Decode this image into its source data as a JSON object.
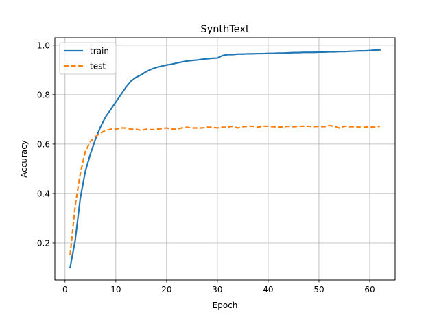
{
  "chart_data": {
    "type": "line",
    "title": "SynthText",
    "xlabel": "Epoch",
    "ylabel": "Accuracy",
    "xlim": [
      -2,
      65
    ],
    "ylim": [
      0.05,
      1.03
    ],
    "grid": true,
    "legend_position": "top-left",
    "x_ticks": [
      0,
      10,
      20,
      30,
      40,
      50,
      60
    ],
    "y_ticks": [
      0.2,
      0.4,
      0.6,
      0.8,
      1.0
    ],
    "x_tick_labels": [
      "0",
      "10",
      "20",
      "30",
      "40",
      "50",
      "60"
    ],
    "y_tick_labels": [
      "0.2",
      "0.4",
      "0.6",
      "0.8",
      "1.0"
    ],
    "x": [
      1,
      2,
      3,
      4,
      5,
      6,
      7,
      8,
      9,
      10,
      11,
      12,
      13,
      14,
      15,
      16,
      17,
      18,
      19,
      20,
      21,
      22,
      23,
      24,
      25,
      26,
      27,
      28,
      29,
      30,
      31,
      32,
      33,
      34,
      35,
      36,
      37,
      38,
      39,
      40,
      41,
      42,
      43,
      44,
      45,
      46,
      47,
      48,
      49,
      50,
      51,
      52,
      53,
      54,
      55,
      56,
      57,
      58,
      59,
      60,
      61,
      62
    ],
    "series": [
      {
        "name": "train",
        "color": "#1f77b4",
        "style": "solid",
        "values": [
          0.1,
          0.21,
          0.38,
          0.49,
          0.56,
          0.62,
          0.67,
          0.71,
          0.74,
          0.77,
          0.8,
          0.83,
          0.855,
          0.87,
          0.88,
          0.893,
          0.903,
          0.91,
          0.915,
          0.92,
          0.923,
          0.928,
          0.932,
          0.936,
          0.938,
          0.94,
          0.943,
          0.945,
          0.947,
          0.948,
          0.958,
          0.962,
          0.962,
          0.964,
          0.964,
          0.965,
          0.965,
          0.966,
          0.966,
          0.967,
          0.967,
          0.968,
          0.968,
          0.969,
          0.97,
          0.97,
          0.971,
          0.971,
          0.971,
          0.972,
          0.972,
          0.973,
          0.973,
          0.974,
          0.974,
          0.975,
          0.976,
          0.977,
          0.977,
          0.978,
          0.98,
          0.981
        ]
      },
      {
        "name": "test",
        "color": "#ff7f0e",
        "style": "dashed",
        "values": [
          0.15,
          0.35,
          0.48,
          0.57,
          0.61,
          0.63,
          0.645,
          0.655,
          0.66,
          0.66,
          0.665,
          0.665,
          0.66,
          0.66,
          0.655,
          0.66,
          0.658,
          0.66,
          0.662,
          0.665,
          0.66,
          0.66,
          0.665,
          0.668,
          0.665,
          0.665,
          0.665,
          0.668,
          0.668,
          0.665,
          0.668,
          0.668,
          0.672,
          0.665,
          0.67,
          0.672,
          0.672,
          0.668,
          0.672,
          0.672,
          0.67,
          0.668,
          0.67,
          0.672,
          0.67,
          0.672,
          0.672,
          0.672,
          0.67,
          0.672,
          0.67,
          0.675,
          0.672,
          0.665,
          0.672,
          0.67,
          0.67,
          0.668,
          0.668,
          0.67,
          0.668,
          0.672
        ]
      }
    ]
  }
}
